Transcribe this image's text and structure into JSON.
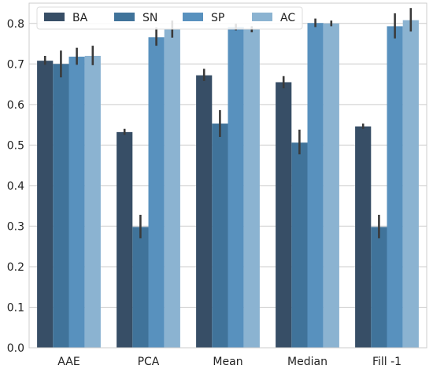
{
  "chart_data": {
    "type": "bar",
    "categories": [
      "AAE",
      "PCA",
      "Mean",
      "Median",
      "Fill -1"
    ],
    "series": [
      {
        "name": "BA",
        "values": [
          0.708,
          0.532,
          0.672,
          0.655,
          0.546
        ],
        "err_low": [
          0.698,
          0.525,
          0.658,
          0.64,
          0.54
        ],
        "err_high": [
          0.72,
          0.54,
          0.688,
          0.67,
          0.553
        ],
        "color": "#374e66"
      },
      {
        "name": "SN",
        "values": [
          0.7,
          0.298,
          0.553,
          0.506,
          0.298
        ],
        "err_low": [
          0.667,
          0.27,
          0.52,
          0.477,
          0.27
        ],
        "err_high": [
          0.733,
          0.328,
          0.586,
          0.538,
          0.328
        ],
        "color": "#40739a"
      },
      {
        "name": "SP",
        "values": [
          0.718,
          0.766,
          0.791,
          0.801,
          0.793
        ],
        "err_low": [
          0.698,
          0.745,
          0.783,
          0.791,
          0.763
        ],
        "err_high": [
          0.74,
          0.79,
          0.799,
          0.812,
          0.825
        ],
        "color": "#5891be"
      },
      {
        "name": "AC",
        "values": [
          0.72,
          0.786,
          0.785,
          0.8,
          0.808
        ],
        "err_low": [
          0.697,
          0.765,
          0.778,
          0.793,
          0.78
        ],
        "err_high": [
          0.745,
          0.807,
          0.793,
          0.807,
          0.838
        ],
        "color": "#8bb3d1"
      }
    ],
    "ylim": [
      0,
      0.85
    ],
    "yticks": [
      "0.0",
      "0.1",
      "0.2",
      "0.3",
      "0.4",
      "0.5",
      "0.6",
      "0.7",
      "0.8"
    ],
    "grid": "horizontal",
    "legend": "top, horizontal",
    "title": "",
    "xlabel": "",
    "ylabel": ""
  }
}
